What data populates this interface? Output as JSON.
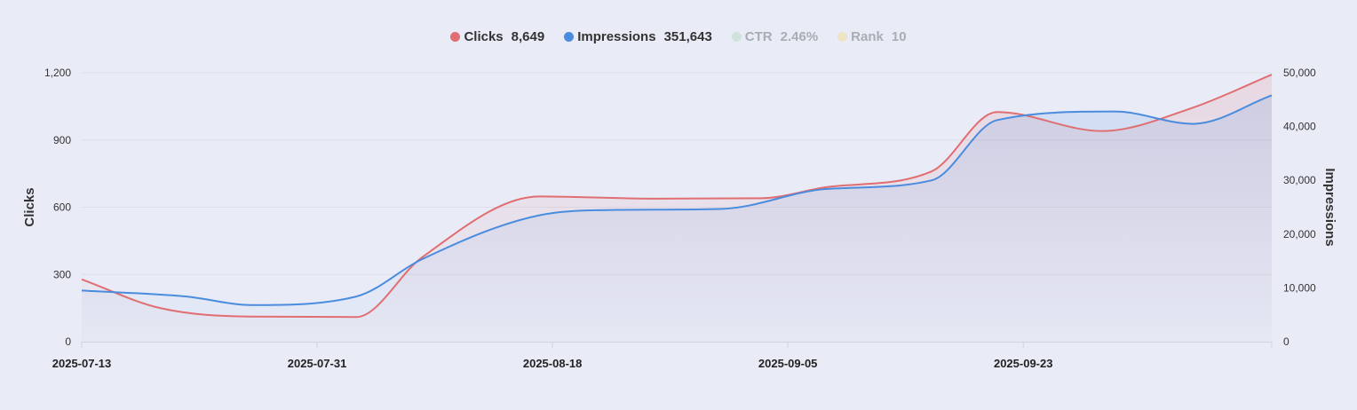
{
  "chart_data": {
    "type": "line",
    "legend_position": "top-center",
    "grid": true,
    "legend": [
      {
        "name": "Clicks",
        "value": "8,649",
        "color": "#e06e72",
        "visible": true
      },
      {
        "name": "Impressions",
        "value": "351,643",
        "color": "#4a8cdd",
        "visible": true
      },
      {
        "name": "CTR",
        "value": "2.46%",
        "color": "#cfe3dc",
        "visible": false
      },
      {
        "name": "Rank",
        "value": "10",
        "color": "#efe3c6",
        "visible": false
      }
    ],
    "x_ticks": [
      "2025-07-13",
      "2025-07-31",
      "2025-08-18",
      "2025-09-05",
      "2025-09-23"
    ],
    "xlim": [
      "2025-07-13",
      "2025-10-12"
    ],
    "y_left": {
      "label": "Clicks",
      "ylim": [
        0,
        1200
      ],
      "ticks": [
        "0",
        "300",
        "600",
        "900",
        "1,200"
      ]
    },
    "y_right": {
      "label": "Impressions",
      "ylim": [
        0,
        50000
      ],
      "ticks": [
        "0",
        "10,000",
        "20,000",
        "30,000",
        "40,000",
        "50,000"
      ]
    },
    "series": [
      {
        "name": "Clicks",
        "axis": "left",
        "color": "#e06e72",
        "points": [
          [
            "2025-07-13",
            278
          ],
          [
            "2025-07-19",
            150
          ],
          [
            "2025-07-26",
            112
          ],
          [
            "2025-08-03",
            110
          ],
          [
            "2025-08-08",
            375
          ],
          [
            "2025-08-17",
            648
          ],
          [
            "2025-08-26",
            638
          ],
          [
            "2025-09-03",
            640
          ],
          [
            "2025-09-08",
            690
          ],
          [
            "2025-09-16",
            760
          ],
          [
            "2025-09-21",
            1025
          ],
          [
            "2025-09-29",
            940
          ],
          [
            "2025-10-06",
            1045
          ],
          [
            "2025-10-12",
            1192
          ]
        ]
      },
      {
        "name": "Impressions",
        "axis": "right",
        "color": "#4a8cdd",
        "points": [
          [
            "2025-07-13",
            9500
          ],
          [
            "2025-07-21",
            8400
          ],
          [
            "2025-07-26",
            6800
          ],
          [
            "2025-08-03",
            8400
          ],
          [
            "2025-08-08",
            15300
          ],
          [
            "2025-08-17",
            23500
          ],
          [
            "2025-08-23",
            24500
          ],
          [
            "2025-08-31",
            24700
          ],
          [
            "2025-09-08",
            28400
          ],
          [
            "2025-09-16",
            30000
          ],
          [
            "2025-09-21",
            41200
          ],
          [
            "2025-09-30",
            42800
          ],
          [
            "2025-10-06",
            40500
          ],
          [
            "2025-10-12",
            45800
          ]
        ]
      }
    ]
  }
}
